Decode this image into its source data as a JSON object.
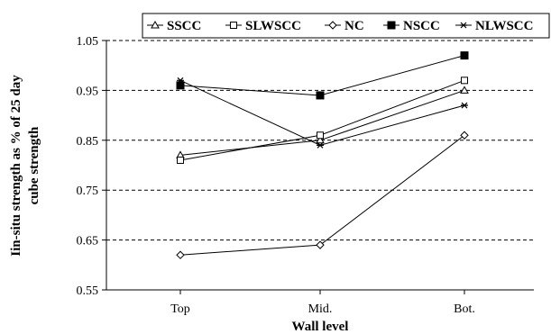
{
  "chart_data": {
    "type": "line",
    "categories": [
      "Top",
      "Mid.",
      "Bot."
    ],
    "series": [
      {
        "name": "SSCC",
        "values": [
          0.82,
          0.85,
          0.95
        ],
        "marker": "triangle-open"
      },
      {
        "name": "SLWSCC",
        "values": [
          0.81,
          0.86,
          0.97
        ],
        "marker": "square-open"
      },
      {
        "name": "NC",
        "values": [
          0.62,
          0.64,
          0.86
        ],
        "marker": "diamond-open"
      },
      {
        "name": "NSCC",
        "values": [
          0.96,
          0.94,
          1.02
        ],
        "marker": "square-filled"
      },
      {
        "name": "NLWSCC",
        "values": [
          0.97,
          0.84,
          0.92
        ],
        "marker": "star"
      }
    ],
    "xlabel": "Wall level",
    "ylabel_line1": "Iin-situ strength as % of 25 day",
    "ylabel_line2": "cube strength",
    "ylim": [
      0.55,
      1.05
    ],
    "yticks": [
      "0.55",
      "0.65",
      "0.75",
      "0.85",
      "0.95",
      "1.05"
    ],
    "grid": "horizontal dashed",
    "legend_position": "top-right",
    "line_color": "#000000"
  }
}
